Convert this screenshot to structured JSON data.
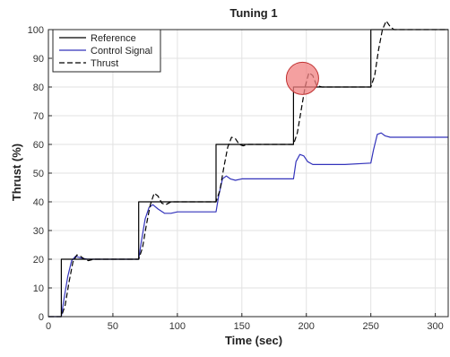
{
  "chart_data": {
    "type": "line",
    "title": "Tuning 1",
    "xlabel": "Time (sec)",
    "ylabel": "Thrust (%)",
    "xlim": [
      0,
      310
    ],
    "ylim": [
      0,
      100
    ],
    "xticks": [
      0,
      50,
      100,
      150,
      200,
      250,
      300
    ],
    "yticks": [
      0,
      10,
      20,
      30,
      40,
      50,
      60,
      70,
      80,
      90,
      100
    ],
    "grid": true,
    "legend_position": "top-left",
    "series": [
      {
        "name": "Reference",
        "color": "#000000",
        "style": "solid",
        "x": [
          0,
          10,
          10,
          70,
          70,
          130,
          130,
          190,
          190,
          250,
          250,
          310
        ],
        "y": [
          0,
          0,
          20,
          20,
          40,
          40,
          60,
          60,
          80,
          80,
          100,
          100
        ]
      },
      {
        "name": "Control Signal",
        "color": "#3333bb",
        "style": "solid",
        "x": [
          0,
          10,
          12,
          15,
          18,
          21,
          25,
          30,
          35,
          40,
          50,
          70,
          72,
          75,
          78,
          81,
          85,
          90,
          95,
          100,
          110,
          130,
          132,
          135,
          138,
          141,
          145,
          150,
          160,
          170,
          190,
          192,
          195,
          198,
          201,
          205,
          210,
          215,
          230,
          250,
          252,
          255,
          258,
          261,
          265,
          270,
          280,
          295,
          310
        ],
        "y": [
          0,
          0,
          6,
          14,
          19.5,
          21,
          20.5,
          20,
          20,
          20,
          20,
          20,
          26,
          34,
          38,
          39,
          37.5,
          36,
          36,
          36.5,
          36.5,
          36.5,
          42,
          48,
          49,
          48,
          47.5,
          48,
          48,
          48,
          48,
          54,
          56.5,
          56,
          54,
          53,
          53,
          53,
          53,
          53.5,
          58,
          63.5,
          64,
          63,
          62.5,
          62.5,
          62.5,
          62.5,
          62.5
        ]
      },
      {
        "name": "Thrust",
        "color": "#000000",
        "style": "dashed",
        "x": [
          0,
          10,
          13,
          16,
          19,
          22,
          25,
          28,
          31,
          35,
          40,
          50,
          70,
          73,
          76,
          79,
          82,
          85,
          88,
          91,
          95,
          100,
          110,
          130,
          133,
          136,
          139,
          142,
          145,
          148,
          151,
          155,
          160,
          170,
          190,
          193,
          196,
          199,
          202,
          205,
          208,
          212,
          220,
          250,
          253,
          256,
          259,
          262,
          265,
          268,
          272,
          280,
          310
        ],
        "y": [
          0,
          0,
          4,
          12,
          19,
          21.5,
          21,
          20,
          19.5,
          20,
          20,
          20,
          20,
          24,
          32,
          39,
          43,
          42,
          39.5,
          39,
          40,
          40,
          40,
          40,
          44,
          52,
          59,
          62.5,
          62,
          60,
          59.5,
          60,
          60,
          60,
          60,
          64,
          72,
          80,
          85,
          84,
          80.5,
          80,
          80,
          80,
          84,
          93,
          100,
          103,
          101,
          100,
          100,
          100,
          100
        ]
      }
    ],
    "annotations": [
      {
        "type": "circle-highlight",
        "x": 197,
        "y": 83,
        "fill": "#f08080"
      }
    ]
  }
}
